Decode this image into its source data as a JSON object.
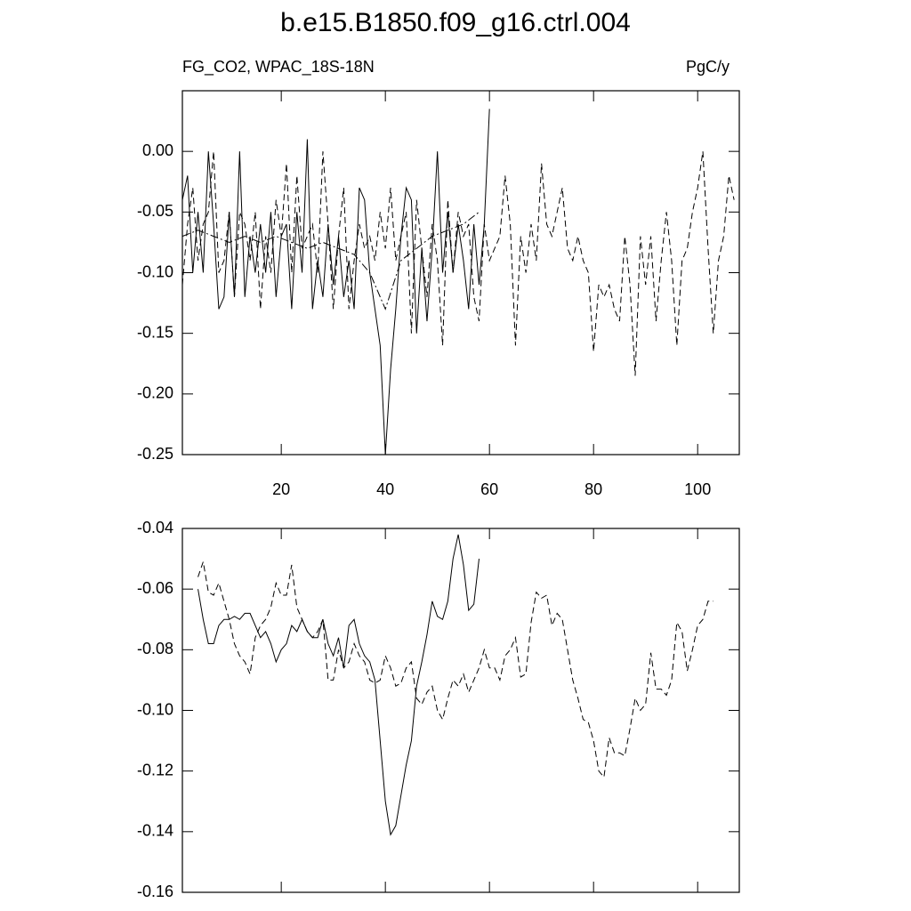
{
  "chart_data": [
    {
      "type": "line",
      "title": "b.e15.B1850.f09_g16.ctrl.004",
      "subtitle_left": "FG_CO2, WPAC_18S-18N",
      "subtitle_right": "PgC/y",
      "xlim": [
        1,
        108
      ],
      "xticks": [
        20,
        40,
        60,
        80,
        100
      ],
      "show_xtick_labels": true,
      "ylim": [
        -0.25,
        0.05
      ],
      "yticks": [
        {
          "value": 0,
          "label": "0.00"
        },
        -0.05,
        {
          "value": -0.1,
          "label": "-0.10"
        },
        -0.15,
        {
          "value": -0.2,
          "label": "-0.20"
        },
        -0.25
      ],
      "series": [
        {
          "color": "#000000",
          "dash": "solid",
          "x": [
            1,
            2,
            3,
            4,
            5,
            6,
            7,
            8,
            9,
            10,
            11,
            12,
            13,
            14,
            15,
            16,
            17,
            18,
            19,
            20,
            21,
            22,
            23,
            24,
            25,
            26,
            27,
            28,
            29,
            30,
            31,
            32,
            33,
            34,
            35,
            36,
            37,
            38,
            39,
            40,
            41,
            42,
            43,
            44,
            45,
            46,
            47,
            48,
            49,
            50,
            51,
            52,
            53,
            54,
            55,
            56,
            57,
            58,
            59,
            60
          ],
          "values": [
            -0.04,
            -0.02,
            -0.1,
            -0.05,
            -0.1,
            0,
            -0.06,
            -0.13,
            -0.12,
            -0.05,
            -0.12,
            0,
            -0.12,
            -0.07,
            -0.1,
            -0.06,
            -0.1,
            -0.05,
            -0.12,
            -0.07,
            -0.06,
            -0.13,
            -0.05,
            -0.1,
            0.01,
            -0.13,
            -0.09,
            -0.12,
            -0.06,
            -0.11,
            -0.07,
            -0.12,
            -0.09,
            -0.13,
            -0.03,
            -0.04,
            -0.1,
            -0.13,
            -0.16,
            -0.25,
            -0.18,
            -0.13,
            -0.07,
            -0.03,
            -0.04,
            -0.15,
            -0.08,
            -0.14,
            -0.08,
            0,
            -0.1,
            -0.05,
            -0.1,
            -0.06,
            -0.09,
            -0.13,
            -0.06,
            -0.11,
            -0.06,
            0.035
          ]
        },
        {
          "color": "#000000",
          "dash": "dashed",
          "x": [
            1,
            2,
            3,
            4,
            5,
            6,
            7,
            8,
            9,
            10,
            11,
            12,
            13,
            14,
            15,
            16,
            17,
            18,
            19,
            20,
            21,
            22,
            23,
            24,
            25,
            26,
            27,
            28,
            29,
            30,
            31,
            32,
            33,
            34,
            35,
            36,
            37,
            38,
            39,
            40,
            41,
            42,
            43,
            44,
            45,
            46,
            47,
            48,
            49,
            50,
            51,
            52,
            53,
            54,
            55,
            56,
            57,
            58,
            59,
            60,
            61,
            62,
            63,
            64,
            65,
            66,
            67,
            68,
            69,
            70,
            71,
            72,
            73,
            74,
            75,
            76,
            77,
            78,
            79,
            80,
            81,
            82,
            83,
            84,
            85,
            86,
            87,
            88,
            89,
            90,
            91,
            92,
            93,
            94,
            95,
            96,
            97,
            98,
            99,
            100,
            101,
            102,
            103,
            104,
            105,
            106,
            107
          ],
          "values": [
            -0.11,
            -0.06,
            -0.03,
            -0.09,
            -0.06,
            -0.05,
            0,
            -0.1,
            -0.09,
            -0.05,
            -0.12,
            -0.05,
            -0.06,
            -0.09,
            -0.05,
            -0.13,
            -0.07,
            -0.1,
            -0.04,
            -0.07,
            -0.01,
            -0.1,
            -0.02,
            -0.08,
            -0.07,
            -0.06,
            -0.1,
            0,
            -0.06,
            -0.13,
            -0.07,
            -0.03,
            -0.13,
            -0.09,
            -0.06,
            -0.08,
            -0.07,
            -0.09,
            -0.05,
            -0.08,
            -0.03,
            -0.09,
            -0.07,
            -0.05,
            -0.15,
            -0.04,
            -0.08,
            -0.12,
            -0.06,
            -0.09,
            -0.16,
            -0.04,
            -0.1,
            -0.05,
            -0.07,
            -0.06,
            -0.12,
            -0.14,
            -0.06,
            -0.09,
            -0.08,
            -0.07,
            -0.02,
            -0.06,
            -0.16,
            -0.07,
            -0.1,
            -0.06,
            -0.09,
            -0.01,
            -0.06,
            -0.07,
            -0.05,
            -0.03,
            -0.08,
            -0.09,
            -0.07,
            -0.09,
            -0.1,
            -0.165,
            -0.11,
            -0.12,
            -0.11,
            -0.13,
            -0.14,
            -0.07,
            -0.11,
            -0.185,
            -0.07,
            -0.11,
            -0.07,
            -0.14,
            -0.09,
            -0.05,
            -0.09,
            -0.16,
            -0.09,
            -0.08,
            -0.05,
            -0.03,
            0,
            -0.08,
            -0.15,
            -0.09,
            -0.07,
            -0.02,
            -0.04
          ]
        },
        {
          "color": "#000000",
          "dash": "dashdot",
          "x": [
            1,
            4,
            7,
            10,
            13,
            16,
            19,
            22,
            25,
            28,
            31,
            34,
            37,
            40,
            43,
            46,
            49,
            52,
            55,
            58
          ],
          "values": [
            -0.07,
            -0.065,
            -0.07,
            -0.075,
            -0.07,
            -0.075,
            -0.07,
            -0.075,
            -0.08,
            -0.075,
            -0.08,
            -0.085,
            -0.1,
            -0.13,
            -0.09,
            -0.08,
            -0.07,
            -0.065,
            -0.06,
            -0.05
          ]
        }
      ]
    },
    {
      "type": "line",
      "xlim": [
        1,
        108
      ],
      "xticks": [
        20,
        40,
        60,
        80,
        100
      ],
      "show_xtick_labels": false,
      "ylim": [
        -0.16,
        -0.04
      ],
      "yticks": [
        -0.04,
        -0.06,
        -0.08,
        {
          "value": -0.1,
          "label": "-0.10"
        },
        -0.12,
        -0.14,
        -0.16
      ],
      "series": [
        {
          "color": "#000000",
          "dash": "solid",
          "x": [
            4,
            5,
            6,
            7,
            8,
            9,
            10,
            11,
            12,
            13,
            14,
            15,
            16,
            17,
            18,
            19,
            20,
            21,
            22,
            23,
            24,
            25,
            26,
            27,
            28,
            29,
            30,
            31,
            32,
            33,
            34,
            35,
            36,
            37,
            38,
            39,
            40,
            41,
            42,
            43,
            44,
            45,
            46,
            47,
            48,
            49,
            50,
            51,
            52,
            53,
            54,
            55,
            56,
            57,
            58
          ],
          "values": [
            -0.06,
            -0.07,
            -0.078,
            -0.078,
            -0.072,
            -0.07,
            -0.07,
            -0.069,
            -0.07,
            -0.068,
            -0.068,
            -0.072,
            -0.076,
            -0.074,
            -0.078,
            -0.084,
            -0.08,
            -0.078,
            -0.072,
            -0.074,
            -0.07,
            -0.074,
            -0.076,
            -0.076,
            -0.07,
            -0.078,
            -0.082,
            -0.076,
            -0.086,
            -0.072,
            -0.07,
            -0.078,
            -0.082,
            -0.084,
            -0.09,
            -0.11,
            -0.13,
            -0.141,
            -0.138,
            -0.128,
            -0.118,
            -0.11,
            -0.092,
            -0.084,
            -0.075,
            -0.064,
            -0.069,
            -0.07,
            -0.064,
            -0.05,
            -0.042,
            -0.052,
            -0.067,
            -0.065,
            -0.05
          ]
        },
        {
          "color": "#000000",
          "dash": "dashed",
          "x": [
            4,
            5,
            6,
            7,
            8,
            9,
            10,
            11,
            12,
            13,
            14,
            15,
            16,
            17,
            18,
            19,
            20,
            21,
            22,
            23,
            24,
            25,
            26,
            27,
            28,
            29,
            30,
            31,
            32,
            33,
            34,
            35,
            36,
            37,
            38,
            39,
            40,
            41,
            42,
            43,
            44,
            45,
            46,
            47,
            48,
            49,
            50,
            51,
            52,
            53,
            54,
            55,
            56,
            57,
            58,
            59,
            60,
            61,
            62,
            63,
            64,
            65,
            66,
            67,
            68,
            69,
            70,
            71,
            72,
            73,
            74,
            75,
            76,
            77,
            78,
            79,
            80,
            81,
            82,
            83,
            84,
            85,
            86,
            87,
            88,
            89,
            90,
            91,
            92,
            93,
            94,
            95,
            96,
            97,
            98,
            99,
            100,
            101,
            102,
            103
          ],
          "values": [
            -0.056,
            -0.051,
            -0.061,
            -0.062,
            -0.058,
            -0.064,
            -0.07,
            -0.078,
            -0.082,
            -0.084,
            -0.088,
            -0.076,
            -0.072,
            -0.07,
            -0.066,
            -0.058,
            -0.062,
            -0.062,
            -0.052,
            -0.066,
            -0.07,
            -0.074,
            -0.076,
            -0.074,
            -0.07,
            -0.09,
            -0.09,
            -0.08,
            -0.086,
            -0.084,
            -0.078,
            -0.082,
            -0.084,
            -0.09,
            -0.091,
            -0.09,
            -0.082,
            -0.086,
            -0.092,
            -0.091,
            -0.086,
            -0.084,
            -0.096,
            -0.098,
            -0.094,
            -0.092,
            -0.1,
            -0.103,
            -0.096,
            -0.09,
            -0.092,
            -0.088,
            -0.094,
            -0.09,
            -0.086,
            -0.08,
            -0.086,
            -0.086,
            -0.09,
            -0.082,
            -0.08,
            -0.076,
            -0.089,
            -0.088,
            -0.071,
            -0.061,
            -0.063,
            -0.062,
            -0.072,
            -0.068,
            -0.07,
            -0.08,
            -0.09,
            -0.096,
            -0.103,
            -0.104,
            -0.11,
            -0.12,
            -0.122,
            -0.109,
            -0.114,
            -0.114,
            -0.115,
            -0.106,
            -0.096,
            -0.1,
            -0.098,
            -0.081,
            -0.093,
            -0.093,
            -0.095,
            -0.09,
            -0.071,
            -0.074,
            -0.087,
            -0.08,
            -0.072,
            -0.07,
            -0.064,
            -0.064
          ]
        }
      ]
    }
  ]
}
